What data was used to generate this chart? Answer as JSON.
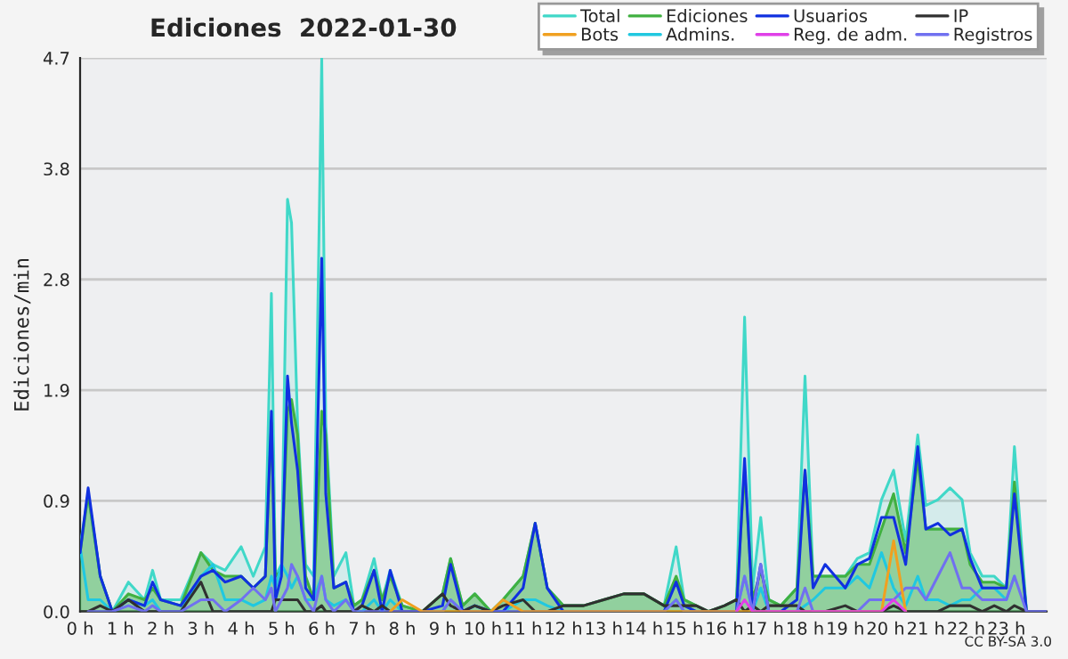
{
  "chart_data": {
    "type": "line",
    "title": "Ediciones  2022-01-30",
    "ylabel": "Ediciones/min",
    "annotations": [
      "CC BY-SA 3.0"
    ],
    "x": [
      0,
      0.2,
      0.5,
      0.8,
      1.2,
      1.6,
      1.8,
      2.0,
      2.5,
      3.0,
      3.3,
      3.6,
      4.0,
      4.3,
      4.6,
      4.75,
      4.85,
      5.0,
      5.15,
      5.25,
      5.4,
      5.6,
      5.8,
      6.0,
      6.1,
      6.3,
      6.6,
      6.8,
      7.0,
      7.3,
      7.5,
      7.7,
      8.0,
      8.5,
      9.0,
      9.2,
      9.5,
      9.8,
      10.2,
      10.5,
      11.0,
      11.3,
      11.6,
      12.0,
      12.5,
      13.0,
      13.5,
      14.0,
      14.5,
      14.8,
      15.0,
      15.3,
      15.6,
      16.0,
      16.3,
      16.5,
      16.7,
      16.9,
      17.1,
      17.4,
      17.8,
      18.0,
      18.2,
      18.5,
      19.0,
      19.3,
      19.6,
      19.9,
      20.2,
      20.5,
      20.8,
      21.0,
      21.3,
      21.6,
      21.9,
      22.1,
      22.4,
      22.7,
      23.0,
      23.2,
      23.5,
      24
    ],
    "xlim": [
      0,
      24
    ],
    "xticks": [
      {
        "value": 0,
        "label": "0 h"
      },
      {
        "value": 1,
        "label": "1 h"
      },
      {
        "value": 2,
        "label": "2 h"
      },
      {
        "value": 3,
        "label": "3 h"
      },
      {
        "value": 4,
        "label": "4 h"
      },
      {
        "value": 5,
        "label": "5 h"
      },
      {
        "value": 6,
        "label": "6 h"
      },
      {
        "value": 7,
        "label": "7 h"
      },
      {
        "value": 8,
        "label": "8 h"
      },
      {
        "value": 9,
        "label": "9 h"
      },
      {
        "value": 10,
        "label": "10 h"
      },
      {
        "value": 11,
        "label": "11 h"
      },
      {
        "value": 12,
        "label": "12 h"
      },
      {
        "value": 13,
        "label": "13 h"
      },
      {
        "value": 14,
        "label": "14 h"
      },
      {
        "value": 15,
        "label": "15 h"
      },
      {
        "value": 16,
        "label": "16 h"
      },
      {
        "value": 17,
        "label": "17 h"
      },
      {
        "value": 18,
        "label": "18 h"
      },
      {
        "value": 19,
        "label": "19 h"
      },
      {
        "value": 20,
        "label": "20 h"
      },
      {
        "value": 21,
        "label": "21 h"
      },
      {
        "value": 22,
        "label": "22 h"
      },
      {
        "value": 23,
        "label": "23 h"
      }
    ],
    "ylim": [
      0,
      4.7
    ],
    "yticks": [
      {
        "value": 0,
        "label": "0.0"
      },
      {
        "value": 0.94,
        "label": "0.9"
      },
      {
        "value": 1.88,
        "label": "1.9"
      },
      {
        "value": 2.82,
        "label": "2.8"
      },
      {
        "value": 3.76,
        "label": "3.8"
      },
      {
        "value": 4.7,
        "label": "4.7"
      }
    ],
    "grid": "y",
    "legend": "top right",
    "series": [
      {
        "name": "Total",
        "type": "area",
        "color": "#40d8c8",
        "values": [
          0.55,
          1.0,
          0.3,
          0,
          0.25,
          0.1,
          0.35,
          0.1,
          0.1,
          0.5,
          0.4,
          0.35,
          0.55,
          0.3,
          0.55,
          2.7,
          0.3,
          0.4,
          3.5,
          3.3,
          1.6,
          0.4,
          0.3,
          4.7,
          1.6,
          0.3,
          0.5,
          0.05,
          0.1,
          0.45,
          0.1,
          0.35,
          0.05,
          0,
          0.15,
          0.45,
          0.05,
          0.15,
          0,
          0.1,
          0.3,
          0.75,
          0.2,
          0.05,
          0.05,
          0.1,
          0.15,
          0.15,
          0.05,
          0.55,
          0.1,
          0.05,
          0,
          0.05,
          0.1,
          2.5,
          0.2,
          0.8,
          0.1,
          0.05,
          0.2,
          2.0,
          0.3,
          0.3,
          0.3,
          0.45,
          0.5,
          0.95,
          1.2,
          0.6,
          1.5,
          0.9,
          0.95,
          1.05,
          0.95,
          0.5,
          0.3,
          0.3,
          0.2,
          1.4,
          0,
          0
        ]
      },
      {
        "name": "Bots",
        "color": "#f0a020",
        "values": [
          null,
          null,
          null,
          null,
          null,
          null,
          null,
          null,
          null,
          null,
          null,
          null,
          null,
          null,
          null,
          null,
          null,
          null,
          null,
          null,
          null,
          null,
          null,
          null,
          null,
          null,
          null,
          null,
          null,
          null,
          null,
          0,
          0.1,
          0,
          null,
          null,
          null,
          null,
          0,
          0.1,
          0,
          null,
          null,
          null,
          null,
          null,
          null,
          null,
          null,
          null,
          null,
          null,
          null,
          null,
          null,
          null,
          null,
          null,
          null,
          null,
          null,
          null,
          null,
          null,
          null,
          null,
          null,
          0,
          0.6,
          0,
          null,
          null,
          null,
          null,
          null,
          null,
          null,
          null,
          null,
          null,
          null,
          null
        ]
      },
      {
        "name": "Ediciones",
        "type": "area",
        "color": "#40b040",
        "values": [
          0.5,
          1.0,
          0.3,
          0,
          0.15,
          0.1,
          0.2,
          0.1,
          0.05,
          0.5,
          0.35,
          0.3,
          0.3,
          0.2,
          0.3,
          1.6,
          0.3,
          0.35,
          1.7,
          1.8,
          1.5,
          0.3,
          0.1,
          1.7,
          1.5,
          0.2,
          0.25,
          0.05,
          0.1,
          0.35,
          0.1,
          0.3,
          0.05,
          0,
          0.15,
          0.45,
          0.05,
          0.15,
          0,
          0.1,
          0.3,
          0.75,
          0.2,
          0.05,
          0.05,
          0.1,
          0.15,
          0.15,
          0.05,
          0.3,
          0.1,
          0.05,
          0,
          0.05,
          0.1,
          1.2,
          0.1,
          0.35,
          0.1,
          0.05,
          0.2,
          1.2,
          0.3,
          0.3,
          0.3,
          0.4,
          0.4,
          0.7,
          1.0,
          0.5,
          1.3,
          0.7,
          0.7,
          0.7,
          0.7,
          0.4,
          0.25,
          0.25,
          0.2,
          1.1,
          0,
          0
        ]
      },
      {
        "name": "Admins.",
        "color": "#20c8e0",
        "values": [
          0.55,
          0.1,
          0.1,
          0,
          0.1,
          0.05,
          0.1,
          0,
          0,
          0.3,
          0.4,
          0.1,
          0.1,
          0.05,
          0.1,
          0.3,
          0.2,
          0.4,
          0.3,
          0.2,
          0.3,
          0.1,
          0.1,
          0.3,
          0.1,
          0.05,
          0.1,
          0,
          0,
          0.1,
          0,
          0.1,
          0,
          0,
          0,
          0.1,
          0,
          0.05,
          0,
          0,
          0.1,
          0.1,
          0.05,
          0,
          0,
          0,
          0,
          0,
          0,
          0.1,
          0,
          0,
          0,
          0,
          0,
          0.3,
          0,
          0.2,
          0,
          0,
          0,
          0.05,
          0.1,
          0.2,
          0.2,
          0.3,
          0.2,
          0.5,
          0.2,
          0.05,
          0.3,
          0.1,
          0.1,
          0.05,
          0.1,
          0.1,
          0.2,
          0.2,
          0.1,
          0.3,
          null,
          null
        ]
      },
      {
        "name": "Usuarios",
        "color": "#1030e0",
        "values": [
          0.5,
          1.05,
          0.3,
          0,
          0.1,
          0.05,
          0.25,
          0.1,
          0.05,
          0.3,
          0.35,
          0.25,
          0.3,
          0.2,
          0.3,
          1.7,
          0.1,
          0.3,
          2.0,
          1.6,
          1.2,
          0.2,
          0.1,
          3.0,
          1.0,
          0.2,
          0.25,
          0,
          0.05,
          0.35,
          0,
          0.35,
          0,
          0,
          0.05,
          0.4,
          0,
          0.05,
          0,
          0,
          0.2,
          0.75,
          0.2,
          0,
          0,
          0,
          0,
          0,
          0,
          0.25,
          0.05,
          0,
          0,
          0,
          0,
          1.3,
          0,
          0.4,
          0,
          0,
          0.1,
          1.2,
          0.2,
          0.4,
          0.2,
          0.4,
          0.45,
          0.8,
          0.8,
          0.4,
          1.4,
          0.7,
          0.75,
          0.65,
          0.7,
          0.45,
          0.2,
          0.2,
          0.2,
          1.0,
          0,
          0
        ]
      },
      {
        "name": "Reg. de adm.",
        "color": "#e040e8",
        "values": [
          null,
          null,
          null,
          null,
          null,
          null,
          null,
          null,
          null,
          null,
          null,
          null,
          null,
          null,
          null,
          null,
          null,
          null,
          null,
          null,
          null,
          null,
          null,
          null,
          null,
          null,
          null,
          null,
          null,
          null,
          null,
          null,
          null,
          null,
          null,
          null,
          null,
          null,
          null,
          null,
          null,
          null,
          null,
          null,
          null,
          null,
          null,
          null,
          null,
          null,
          null,
          null,
          null,
          null,
          0,
          0.1,
          0,
          null,
          null,
          null,
          null,
          null,
          null,
          null,
          null,
          null,
          null,
          0,
          0.1,
          0,
          null,
          null,
          null,
          null,
          null,
          null,
          null,
          null,
          null,
          null,
          null,
          null
        ]
      },
      {
        "name": "IP",
        "color": "#303030",
        "values": [
          0,
          0,
          0.05,
          0,
          0.1,
          0,
          0,
          0,
          0,
          0.25,
          0,
          0,
          0,
          0,
          0,
          0,
          0.1,
          0.1,
          0.1,
          0.1,
          0.1,
          0,
          0,
          0.05,
          0,
          0,
          0,
          0,
          0.05,
          0,
          0.05,
          0,
          0,
          0,
          0.15,
          0.05,
          0,
          0.05,
          0,
          0.05,
          0.1,
          0,
          0,
          0.05,
          0.05,
          0.1,
          0.15,
          0.15,
          0.05,
          0.05,
          0.05,
          0.05,
          0,
          0.05,
          0.1,
          0,
          0.05,
          0,
          0.05,
          0.05,
          0.05,
          0,
          0,
          0,
          0.05,
          0,
          0,
          0,
          0.05,
          0,
          0,
          0,
          0,
          0.05,
          0.05,
          0.05,
          0,
          0.05,
          0,
          0.05,
          0,
          0
        ]
      },
      {
        "name": "Registros",
        "color": "#7070f0",
        "values": [
          null,
          0,
          0,
          0,
          0.05,
          0,
          0.05,
          0,
          0,
          0.1,
          0.1,
          0,
          0.1,
          0.2,
          0.1,
          0.2,
          0,
          0.1,
          0.2,
          0.4,
          0.3,
          0.1,
          0,
          0.3,
          0.1,
          0,
          0.1,
          0,
          0,
          0,
          0,
          0,
          0,
          0,
          0,
          0.1,
          0,
          0,
          0,
          0,
          0,
          null,
          0,
          0,
          0,
          0,
          0,
          0,
          0,
          0.1,
          0,
          0,
          0,
          0,
          0,
          0.3,
          0,
          0.4,
          0,
          0,
          0,
          0.2,
          0,
          0,
          0,
          0,
          0.1,
          0.1,
          0.1,
          0.2,
          0.2,
          0.1,
          0.3,
          0.5,
          0.2,
          0.2,
          0.1,
          0.1,
          0.1,
          0.3,
          0,
          0
        ]
      }
    ]
  }
}
